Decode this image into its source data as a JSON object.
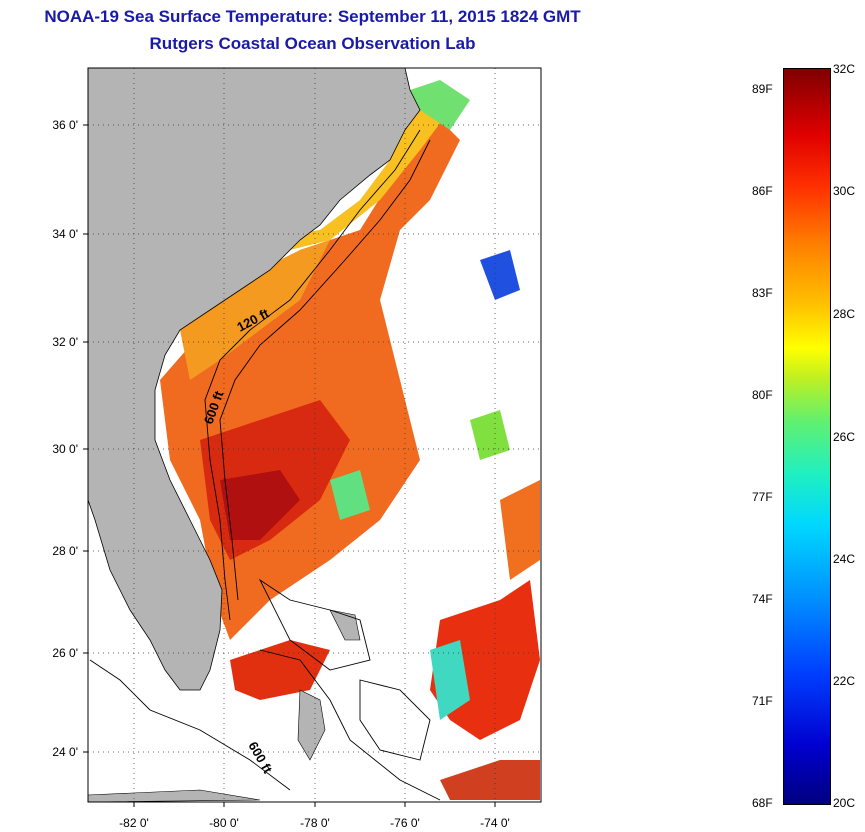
{
  "title": {
    "line1": "NOAA-19 Sea Surface Temperature:  September 11, 2015 1824 GMT",
    "line2": "Rutgers Coastal Ocean Observation Lab"
  },
  "map": {
    "lon_ticks": [
      "-82 0'",
      "-80 0'",
      "-78 0'",
      "-76 0'",
      "-74 0'"
    ],
    "lat_ticks": [
      "36 0'",
      "34 0'",
      "32 0'",
      "30 0'",
      "28 0'",
      "26 0'",
      "24 0'"
    ],
    "contour_labels": [
      "120 ft",
      "600 ft",
      "600 ft"
    ],
    "land_color": "#b4b4b4"
  },
  "colorbar": {
    "f_labels": [
      "89F",
      "86F",
      "83F",
      "80F",
      "77F",
      "74F",
      "71F",
      "68F"
    ],
    "c_labels": [
      "32C",
      "30C",
      "28C",
      "26C",
      "24C",
      "22C",
      "20C"
    ]
  }
}
